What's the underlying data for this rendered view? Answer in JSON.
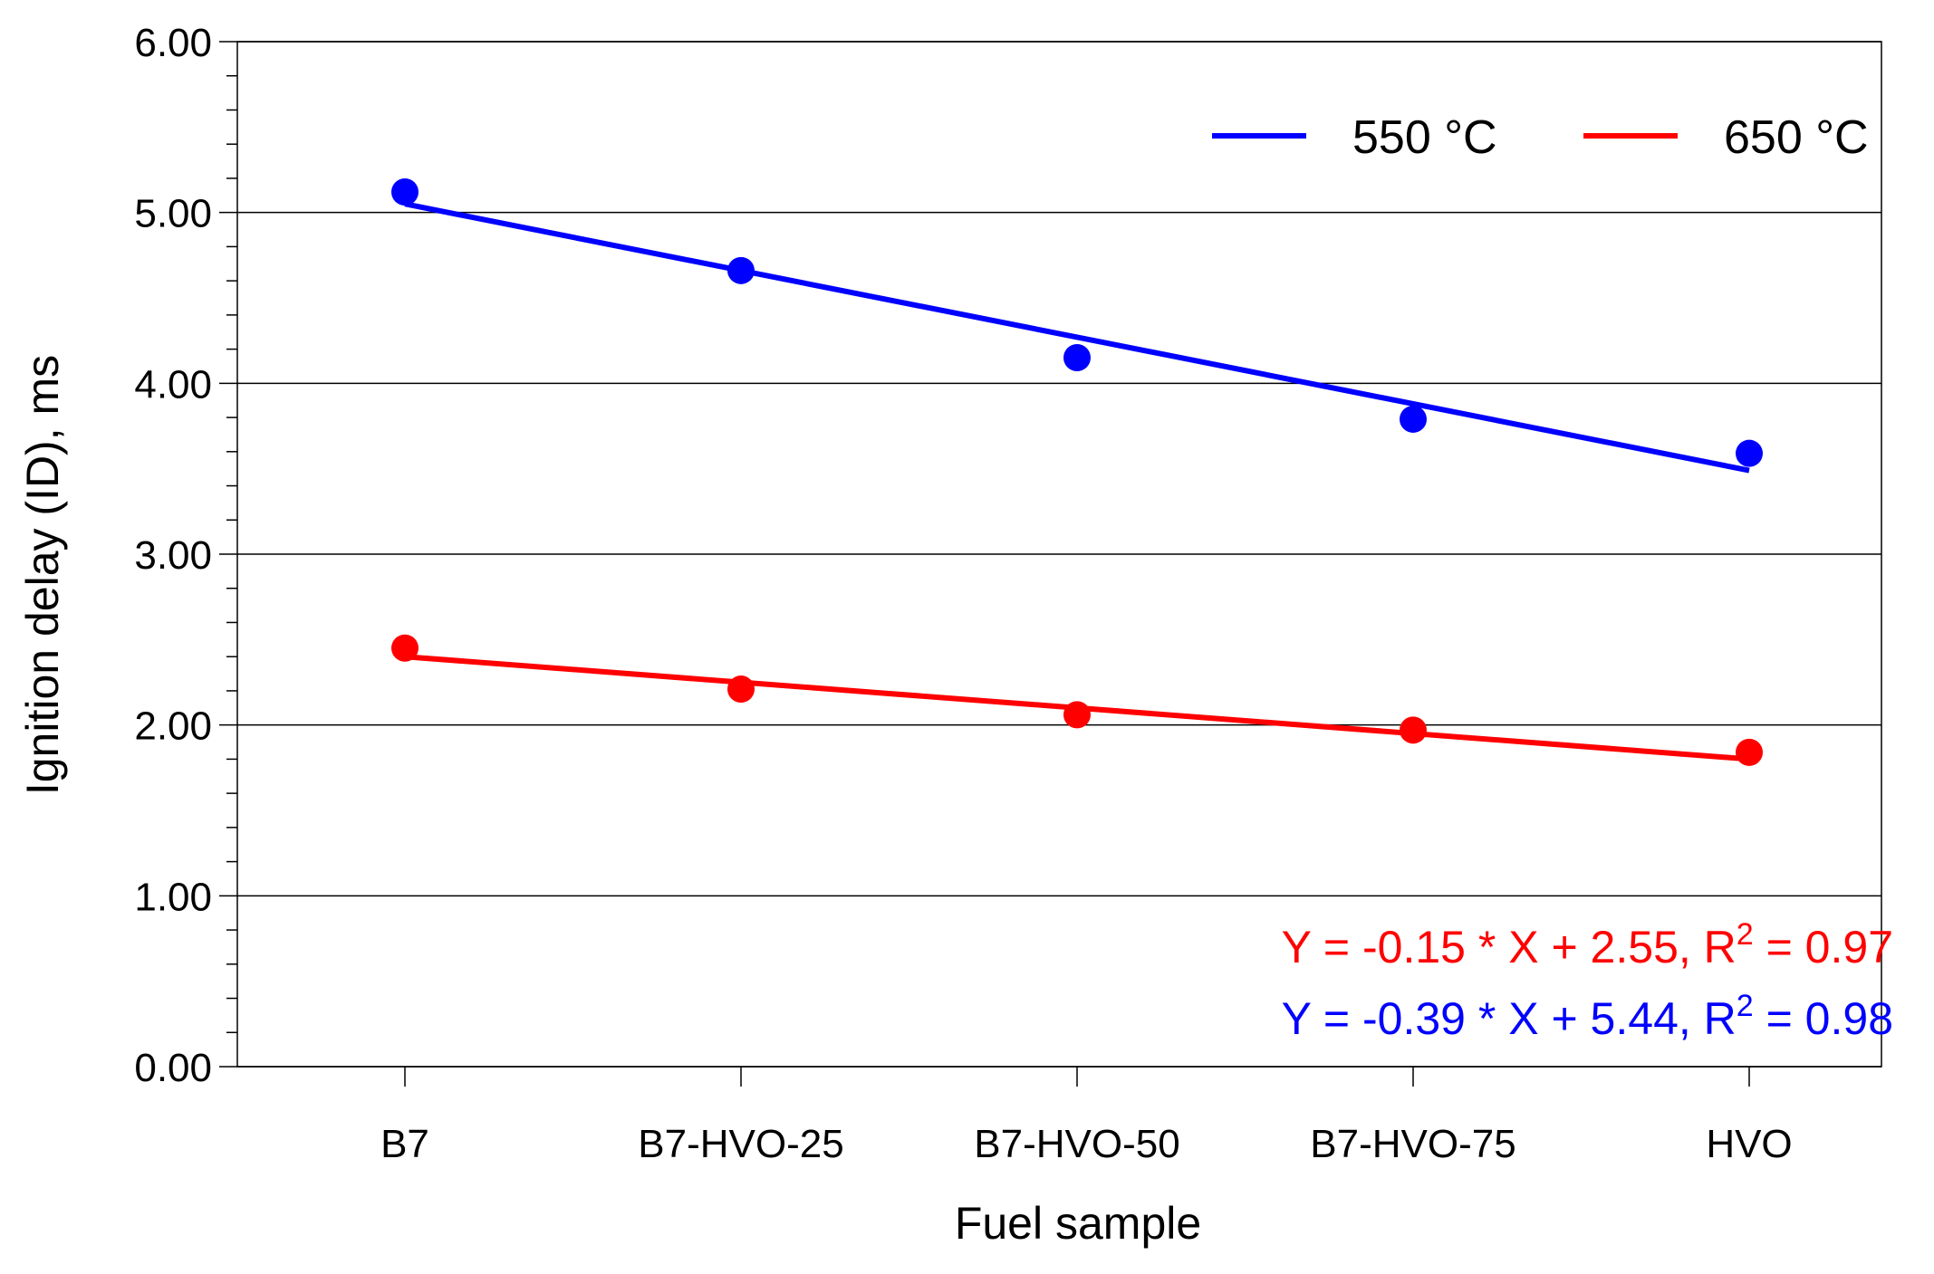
{
  "chart_data": {
    "type": "scatter",
    "title": "",
    "xlabel": "Fuel sample",
    "ylabel": "Ignition delay (ID), ms",
    "categories": [
      "B7",
      "B7-HVO-25",
      "B7-HVO-50",
      "B7-HVO-75",
      "HVO"
    ],
    "ylim": [
      0,
      6
    ],
    "yticks": [
      "0.00",
      "1.00",
      "2.00",
      "3.00",
      "4.00",
      "5.00",
      "6.00"
    ],
    "grid": "horizontal",
    "legend_position": "top-right",
    "series": [
      {
        "name": "550 °C",
        "color": "#0000ff",
        "values": [
          5.12,
          4.66,
          4.15,
          3.79,
          3.59
        ],
        "fit": {
          "slope": -0.39,
          "intercept": 5.44,
          "r2": 0.98
        }
      },
      {
        "name": "650 °C",
        "color": "#ff0000",
        "values": [
          2.45,
          2.21,
          2.06,
          1.97,
          1.84
        ],
        "fit": {
          "slope": -0.15,
          "intercept": 2.55,
          "r2": 0.97
        }
      }
    ],
    "annotations": [
      {
        "series": "650 °C",
        "color": "#ff0000",
        "prefix": "Y = -0.15 * X + 2.55, R",
        "sup": "2",
        "suffix": " = 0.97"
      },
      {
        "series": "550 °C",
        "color": "#0000ff",
        "prefix": "Y = -0.39 * X + 5.44, R",
        "sup": "2",
        "suffix": " = 0.98"
      }
    ]
  }
}
